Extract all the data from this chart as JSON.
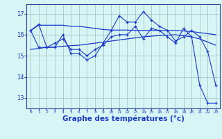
{
  "background_color": "#d7f5f5",
  "grid_color": "#aacccc",
  "line_color": "#1a3acc",
  "xlabel": "Graphe des températures (°c)",
  "xlabel_fontsize": 7.5,
  "yticks": [
    13,
    14,
    15,
    16,
    17
  ],
  "xtick_labels": [
    "0",
    "1",
    "2",
    "3",
    "4",
    "5",
    "6",
    "7",
    "8",
    "9",
    "10",
    "11",
    "12",
    "13",
    "14",
    "15",
    "16",
    "17",
    "18",
    "19",
    "20",
    "21",
    "22",
    "23"
  ],
  "xlim": [
    -0.5,
    23.5
  ],
  "ylim": [
    12.5,
    17.45
  ],
  "series1_x": [
    0,
    1,
    2,
    3,
    4,
    5,
    6,
    7,
    8,
    9,
    10,
    11,
    12,
    13,
    14,
    15,
    16,
    17,
    18,
    19,
    20,
    21,
    22,
    23
  ],
  "series1_y": [
    16.2,
    16.45,
    16.45,
    16.45,
    16.45,
    16.4,
    16.4,
    16.35,
    16.3,
    16.25,
    16.22,
    16.22,
    16.22,
    16.2,
    16.2,
    16.2,
    16.2,
    16.2,
    16.2,
    16.18,
    16.15,
    16.1,
    16.05,
    16.0
  ],
  "series2_x": [
    0,
    1,
    2,
    3,
    4,
    5,
    6,
    7,
    8,
    9,
    10,
    11,
    12,
    13,
    14,
    15,
    16,
    17,
    18,
    19,
    20,
    21,
    22,
    23
  ],
  "series2_y": [
    15.3,
    15.35,
    15.4,
    15.42,
    15.45,
    15.48,
    15.5,
    15.55,
    15.6,
    15.65,
    15.7,
    15.75,
    15.8,
    15.85,
    15.9,
    15.93,
    15.96,
    15.98,
    16.0,
    15.95,
    15.9,
    15.8,
    15.65,
    15.5
  ],
  "series3_x": [
    0,
    1,
    2,
    3,
    4,
    5,
    6,
    7,
    8,
    9,
    10,
    11,
    12,
    13,
    14,
    15,
    16,
    17,
    18,
    19,
    20,
    21,
    22,
    23
  ],
  "series3_y": [
    16.2,
    16.5,
    15.4,
    15.4,
    16.0,
    15.1,
    15.1,
    14.8,
    15.0,
    15.6,
    16.2,
    16.9,
    16.6,
    16.6,
    17.1,
    16.7,
    16.4,
    16.2,
    15.7,
    15.9,
    16.2,
    15.9,
    15.2,
    13.6
  ],
  "series4_x": [
    0,
    1,
    2,
    3,
    4,
    5,
    6,
    7,
    8,
    9,
    10,
    11,
    12,
    13,
    14,
    15,
    16,
    17,
    18,
    19,
    20,
    21,
    22,
    23
  ],
  "series4_y": [
    16.2,
    15.4,
    15.4,
    15.6,
    15.8,
    15.3,
    15.3,
    15.0,
    15.3,
    15.5,
    15.9,
    16.0,
    16.0,
    16.4,
    15.8,
    16.3,
    16.2,
    15.9,
    15.6,
    16.3,
    15.9,
    13.6,
    12.75,
    12.75
  ]
}
